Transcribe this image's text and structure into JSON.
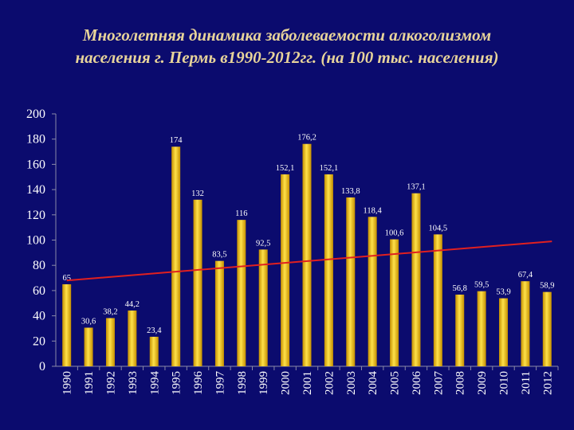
{
  "title": {
    "line1": "Многолетняя динамика заболеваемости алкоголизмом",
    "line2": "населения г. Пермь в1990-2012гг. (на 100 тыс. населения)"
  },
  "colors": {
    "background": "#0b0b6e",
    "bar": "#f5c400",
    "trend": "#e02020",
    "text": "#ffffff",
    "title": "#e8d49a"
  },
  "chart_data": {
    "type": "bar",
    "categories": [
      "1990",
      "1991",
      "1992",
      "1993",
      "1994",
      "1995",
      "1996",
      "1997",
      "1998",
      "1999",
      "2000",
      "2001",
      "2002",
      "2003",
      "2004",
      "2005",
      "2006",
      "2007",
      "2008",
      "2009",
      "2010",
      "2011",
      "2012"
    ],
    "values": [
      65,
      30.6,
      38.2,
      44.2,
      23.4,
      174,
      132,
      83.5,
      116,
      92.5,
      152.1,
      176.2,
      152.1,
      133.8,
      118.4,
      100.6,
      137.1,
      104.5,
      56.8,
      59.5,
      53.9,
      67.4,
      58.9
    ],
    "value_labels": [
      "65",
      "30,6",
      "38,2",
      "44,2",
      "23,4",
      "174",
      "132",
      "83,5",
      "116",
      "92,5",
      "152,1",
      "176,2",
      "152,1",
      "133,8",
      "118,4",
      "100,6",
      "137,1",
      "104,5",
      "56,8",
      "59,5",
      "53,9",
      "67,4",
      "58,9"
    ],
    "ylim": [
      0,
      200
    ],
    "yticks": [
      0,
      20,
      40,
      60,
      80,
      100,
      120,
      140,
      160,
      180,
      200
    ],
    "trendline": {
      "type": "linear",
      "start": 68,
      "end": 99
    },
    "grid": false,
    "legend": "none"
  }
}
